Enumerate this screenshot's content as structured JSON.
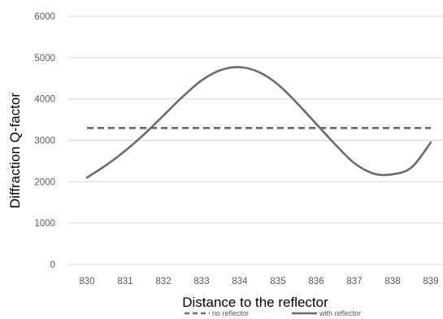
{
  "chart_data": {
    "type": "line",
    "title": "",
    "xlabel": "Distance to the reflector",
    "ylabel": "Diffraction Q-factor",
    "x_ticks": [
      "830",
      "831",
      "832",
      "833",
      "834",
      "835",
      "836",
      "837",
      "838",
      "839"
    ],
    "y_ticks": [
      "0",
      "1000",
      "2000",
      "3000",
      "4000",
      "5000",
      "6000"
    ],
    "xlim": [
      830,
      839
    ],
    "ylim": [
      0,
      6000
    ],
    "grid": "horizontal",
    "legend_position": "bottom",
    "series": [
      {
        "name": "no reflector",
        "style": "dashed",
        "color": "#6b6b6b",
        "x": [
          830,
          839
        ],
        "y": [
          3300,
          3300
        ]
      },
      {
        "name": "with reflector",
        "style": "solid",
        "color": "#6b6b6b",
        "x": [
          830,
          830.5,
          831,
          831.5,
          832,
          832.5,
          833,
          833.5,
          834,
          834.5,
          835,
          835.5,
          836,
          836.5,
          837,
          837.5,
          838,
          838.5,
          839
        ],
        "y": [
          2100,
          2400,
          2750,
          3150,
          3600,
          4050,
          4450,
          4700,
          4770,
          4650,
          4350,
          3900,
          3400,
          2900,
          2450,
          2200,
          2180,
          2350,
          2950
        ]
      }
    ]
  }
}
